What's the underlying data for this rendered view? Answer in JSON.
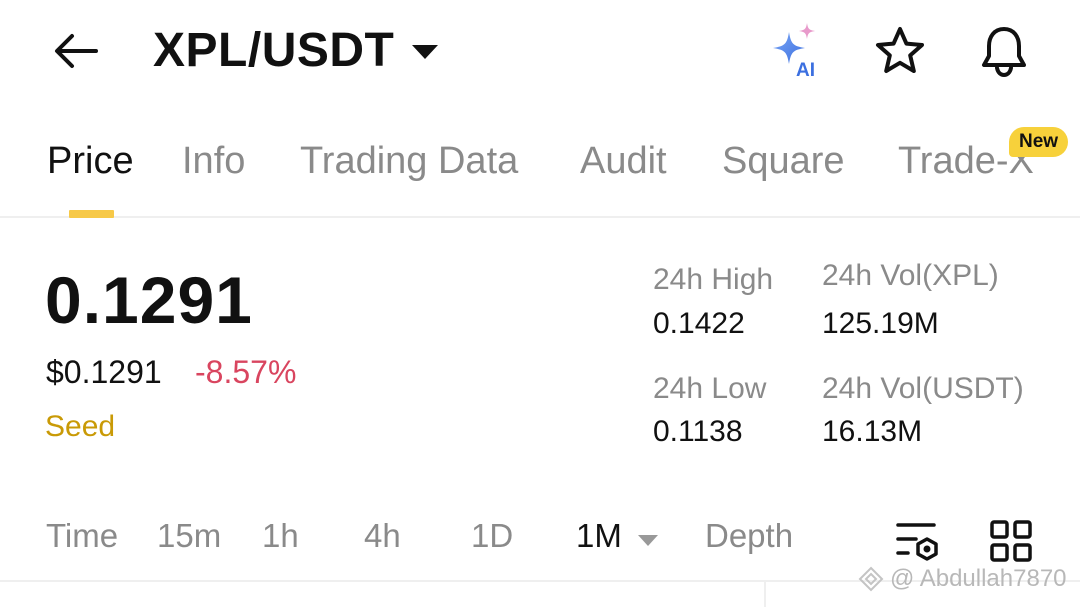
{
  "header": {
    "pair": "XPL/USDT",
    "ai_label": "AI"
  },
  "tabs": [
    {
      "label": "Price"
    },
    {
      "label": "Info"
    },
    {
      "label": "Trading Data"
    },
    {
      "label": "Audit"
    },
    {
      "label": "Square"
    },
    {
      "label": "Trade-X"
    }
  ],
  "tab_badge": "New",
  "price": {
    "last": "0.1291",
    "usd": "$0.1291",
    "change": "-8.57%",
    "tag": "Seed"
  },
  "stats": {
    "high_label": "24h High",
    "high_value": "0.1422",
    "vol_base_label": "24h Vol(XPL)",
    "vol_base_value": "125.19M",
    "low_label": "24h Low",
    "low_value": "0.1138",
    "vol_quote_label": "24h Vol(USDT)",
    "vol_quote_value": "16.13M"
  },
  "intervals": {
    "time": "Time",
    "m15": "15m",
    "h1": "1h",
    "h4": "4h",
    "d1": "1D",
    "m1": "1M",
    "depth": "Depth"
  },
  "watermark": "@ Abdullah7870",
  "colors": {
    "accent": "#f7c948",
    "negative": "#d9455f",
    "seed": "#c99a06",
    "muted": "#8a8a8a"
  }
}
